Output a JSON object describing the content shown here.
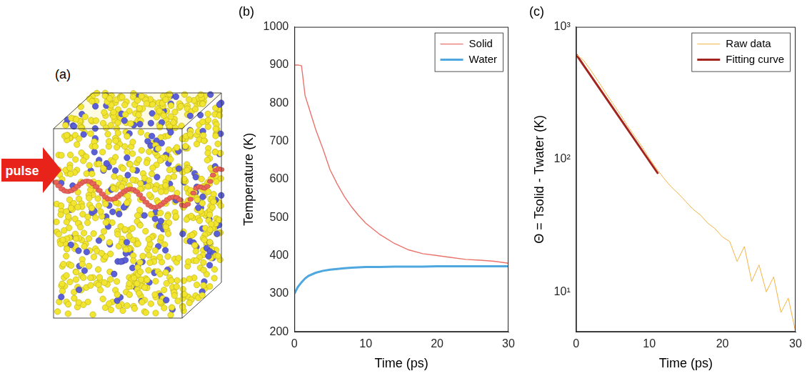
{
  "diagram": {
    "label": "(a)",
    "arrow_label": "pulse"
  },
  "chart_data": [
    {
      "type": "line",
      "title": "(b)",
      "x": [
        0,
        0.5,
        1,
        1.5,
        2,
        3,
        4,
        5,
        6,
        7,
        8,
        9,
        10,
        12,
        14,
        16,
        18,
        20,
        22,
        24,
        26,
        28,
        30
      ],
      "series": [
        {
          "name": "Solid",
          "color": "#e9736b",
          "values": [
            900,
            900,
            898,
            820,
            790,
            730,
            680,
            625,
            588,
            555,
            528,
            505,
            485,
            455,
            432,
            415,
            405,
            400,
            395,
            390,
            388,
            385,
            380
          ]
        },
        {
          "name": "Water",
          "color": "#4ea7df",
          "values": [
            300,
            318,
            330,
            340,
            347,
            355,
            360,
            363,
            365,
            367,
            368,
            369,
            370,
            370,
            371,
            371,
            371,
            372,
            372,
            372,
            372,
            372,
            372
          ]
        }
      ],
      "xlabel": "Time (ps)",
      "ylabel": "Temperature (K)",
      "xlim": [
        0,
        30
      ],
      "xticks": [
        0,
        10,
        20,
        30
      ],
      "ylim": [
        200,
        1000
      ],
      "yticks": [
        200,
        300,
        400,
        500,
        600,
        700,
        800,
        900,
        1000
      ],
      "grid": false,
      "legend": "top right"
    },
    {
      "type": "line",
      "title": "(c)",
      "log": "y",
      "series": [
        {
          "name": "Raw data",
          "color": "#f3b443",
          "x": [
            0,
            1,
            2,
            3,
            4,
            5,
            6,
            7,
            8,
            9,
            10,
            11,
            12,
            13,
            14,
            15,
            16,
            17,
            18,
            19,
            20,
            21,
            22,
            23,
            24,
            25,
            26,
            27,
            28,
            29,
            30
          ],
          "values": [
            620,
            560,
            470,
            390,
            320,
            265,
            220,
            180,
            150,
            125,
            102,
            85,
            72,
            62,
            55,
            48,
            42,
            38,
            33,
            30,
            26,
            24,
            17,
            22,
            12,
            16,
            10,
            13,
            7,
            9,
            5
          ]
        },
        {
          "name": "Fitting curve",
          "color": "#a3231e",
          "x": [
            0,
            11.2
          ],
          "values": [
            620,
            78
          ]
        }
      ],
      "xlabel": "Time (ps)",
      "ylabel": "Θ = Tsolid - Twater (K)",
      "xlim": [
        0,
        30
      ],
      "xticks": [
        0,
        10,
        20,
        30
      ],
      "ylim": [
        5,
        1000
      ],
      "yticks": [
        {
          "value": 10,
          "label": "10¹"
        },
        {
          "value": 100,
          "label": "10²"
        },
        {
          "value": 1000,
          "label": "10³"
        }
      ],
      "grid": false,
      "legend": "top right"
    }
  ]
}
